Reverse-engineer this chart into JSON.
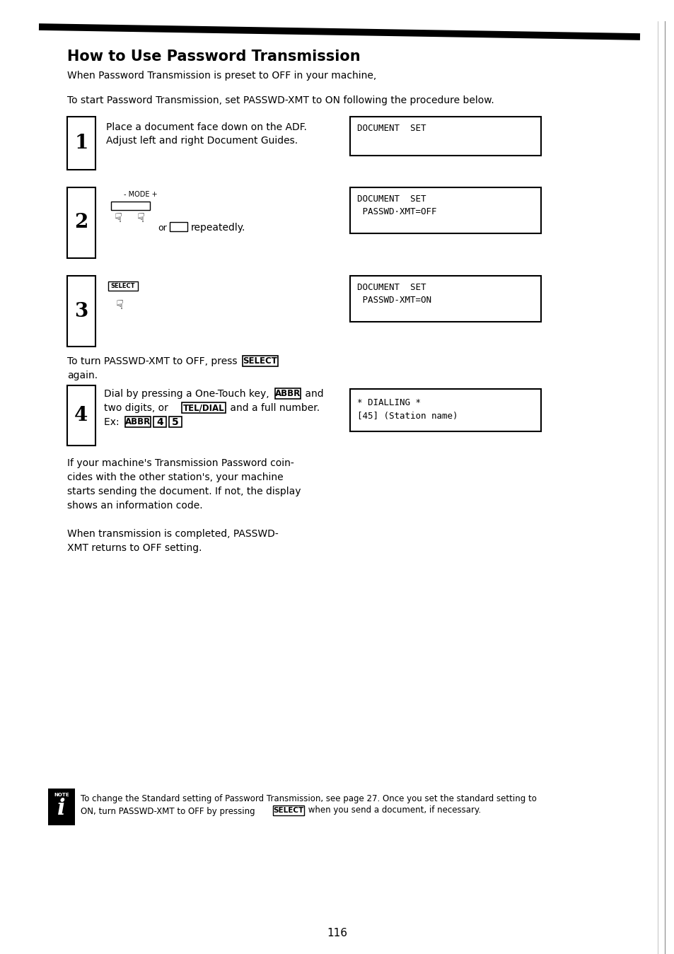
{
  "title": "How to Use Password Transmission",
  "subtitle": "When Password Transmission is preset to OFF in your machine,",
  "intro": "To start Password Transmission, set PASSWD-XMT to ON following the procedure below.",
  "bg_color": "#ffffff",
  "text_color": "#000000",
  "page_number": "116",
  "disp1": "DOCUMENT  SET",
  "disp2_line1": "DOCUMENT  SET",
  "disp2_line2": " PASSWD·XMT=OFF",
  "disp3_line1": "DOCUMENT  SET",
  "disp3_line2": " PASSWD-XMT=ON",
  "disp4_line1": "* DIALLING *",
  "disp4_line2": "[45] (Station name)",
  "note_text": "To change the Standard setting of Password Transmission, see page 27. Once you set the standard setting to\nON, turn PASSWD-XMT to OFF by pressing [SELECT] when you send a document, if necessary."
}
